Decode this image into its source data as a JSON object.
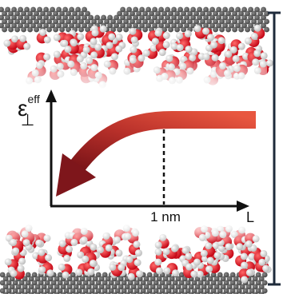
{
  "y_axis_label": {
    "symbol": "ε",
    "subscript": "⊥",
    "superscript": "eff"
  },
  "marker_label": "1 nm",
  "x_axis_label": "L"
}
